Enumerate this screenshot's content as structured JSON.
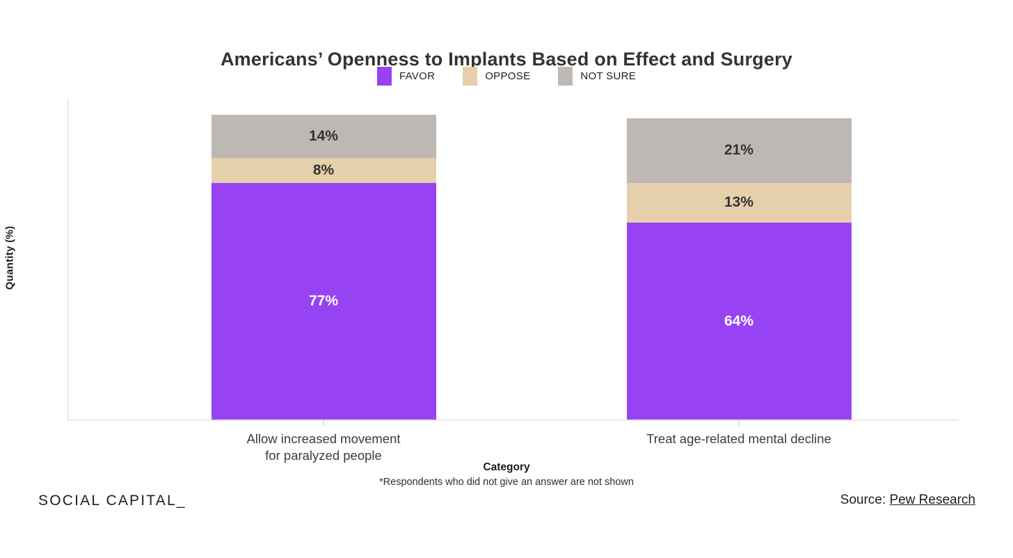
{
  "page": {
    "brand": "SOCIAL CAPITAL_",
    "source_prefix": "Source: ",
    "source_link": "Pew Research",
    "footnote": "*Respondents who did not give an answer are not shown"
  },
  "chart_data": {
    "type": "bar",
    "stacked": true,
    "title": "Americans’ Openness to Implants Based on Effect and Surgery",
    "xlabel": "Category",
    "ylabel": "Quantity (%)",
    "ylim": [
      0,
      100
    ],
    "grid": false,
    "legend_position": "top",
    "categories": [
      "Allow increased movement\nfor paralyzed people",
      "Treat age-related mental decline"
    ],
    "series": [
      {
        "name": "FAVOR",
        "color": "#9743f4",
        "values": [
          77,
          64
        ]
      },
      {
        "name": "OPPOSE",
        "color": "#e6d0ab",
        "values": [
          8,
          13
        ]
      },
      {
        "name": "NOT SURE",
        "color": "#bdb8b4",
        "values": [
          14,
          21
        ]
      }
    ],
    "value_label_format": "{v}%"
  }
}
